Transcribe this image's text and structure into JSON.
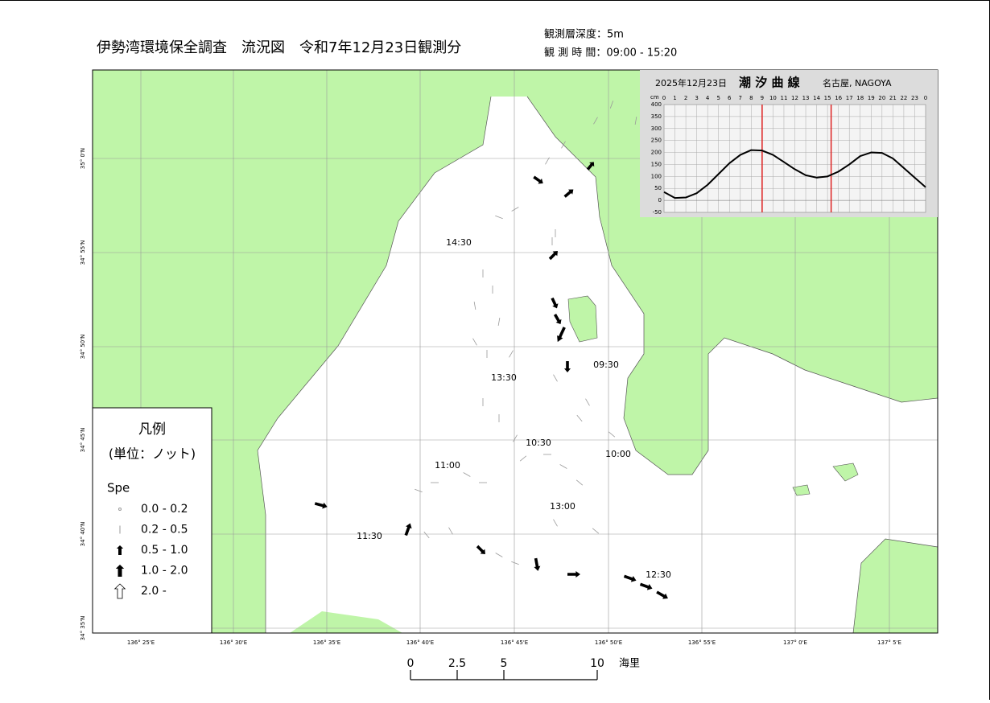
{
  "header": {
    "title": "伊勢湾環境保全調査　流況図　令和7年12月23日観測分",
    "depth": "観測層深度：5m",
    "time": "観 測 時 間：09:00 - 15:20"
  },
  "map": {
    "lat_labels": [
      "35° 0'N",
      "34° 55'N",
      "34° 50'N",
      "34° 45'N",
      "34° 40'N",
      "34° 35'N"
    ],
    "lon_labels": [
      "136° 25'E",
      "136° 30'E",
      "136° 35'E",
      "136° 40'E",
      "136° 45'E",
      "136° 50'E",
      "136° 55'E",
      "137° 0'E",
      "137° 5'E"
    ],
    "time_labels": [
      "14:30",
      "13:30",
      "09:30",
      "10:30",
      "10:00",
      "11:00",
      "13:00",
      "11:30",
      "12:30"
    ]
  },
  "legend": {
    "title": "凡例",
    "unit": "(単位：ノット)",
    "heading": "Spe",
    "items": [
      "0.0 - 0.2",
      "0.2 - 0.5",
      "0.5 - 1.0",
      "1.0 - 2.0",
      "2.0 -"
    ]
  },
  "scale_bar": {
    "ticks": [
      0,
      2.5,
      5,
      10
    ],
    "unit": "海里"
  },
  "tide_chart": {
    "type": "line",
    "date": "2025年12月23日",
    "title": "潮 汐 曲 線",
    "station": "名古屋, NAGOYA",
    "y_unit": "cm",
    "x": [
      0,
      1,
      2,
      3,
      4,
      5,
      6,
      7,
      8,
      9,
      10,
      11,
      12,
      13,
      14,
      15,
      16,
      17,
      18,
      19,
      20,
      21,
      22,
      23,
      24
    ],
    "values": [
      35,
      10,
      12,
      30,
      65,
      110,
      155,
      190,
      210,
      208,
      190,
      160,
      130,
      105,
      95,
      100,
      120,
      150,
      185,
      200,
      198,
      175,
      135,
      95,
      55
    ],
    "xlim": [
      0,
      24
    ],
    "xticks": [
      0,
      1,
      2,
      3,
      4,
      5,
      6,
      7,
      8,
      9,
      10,
      11,
      12,
      13,
      14,
      15,
      16,
      17,
      18,
      19,
      20,
      21,
      22,
      23,
      {
        "value": 24,
        "label": "0"
      }
    ],
    "ylim": [
      -50,
      400
    ],
    "yticks": [
      -50,
      0,
      50,
      100,
      150,
      200,
      250,
      300,
      350,
      400
    ],
    "markers": [
      9,
      15.333
    ],
    "color": "#000000",
    "marker_color": "#dd2222"
  }
}
